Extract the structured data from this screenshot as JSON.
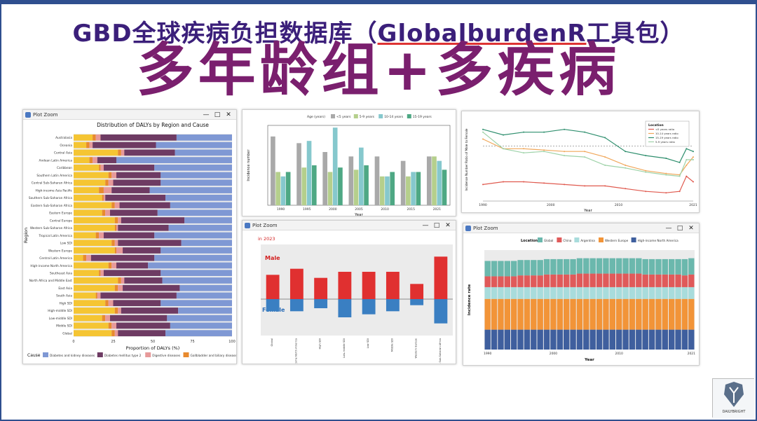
{
  "header": {
    "title_prefix": "GBD全球疾病负担数据库（",
    "title_underlined": "GlobalburdenR",
    "title_suffix": "工具包）",
    "subtitle": "多年龄组+多疾病"
  },
  "windows": {
    "zoom_label": "Plot Zoom",
    "minimize": "—",
    "restore": "□",
    "close": "✕"
  },
  "colors": {
    "frame": "#2f4f8f",
    "title": "#3b1f7a",
    "subtitle": "#7a1f6e"
  },
  "logo": {
    "text": "DAILYBRIGHT"
  },
  "chart_data": [
    {
      "type": "bar",
      "orientation": "horizontal-stacked",
      "title": "Distribution of DALYs by Region and Cause",
      "xlabel": "Proportion of DALYs (%)",
      "ylabel": "Region",
      "xlim": [
        0,
        100
      ],
      "xticks": [
        "0",
        "25",
        "50",
        "75",
        "100"
      ],
      "legend_title": "Cause",
      "legend_position": "bottom",
      "categories": [
        "Australasia",
        "Oceania",
        "Central Asia",
        "Andean Latin America",
        "Caribbean",
        "Southern Latin America",
        "Central Sub-Saharan Africa",
        "High-income Asia Pacific",
        "Southern Sub-Saharan Africa",
        "Eastern Sub-Saharan Africa",
        "Eastern Europe",
        "Central Europe",
        "Western Sub-Saharan Africa",
        "Tropical Latin America",
        "Low SDI",
        "Western Europe",
        "Central Latin America",
        "High-income North America",
        "Southeast Asia",
        "North Africa and Middle East",
        "East Asia",
        "South Asia",
        "High SDI",
        "High-middle SDI",
        "Low-middle SDI",
        "Middle SDI",
        "Global"
      ],
      "series": [
        {
          "name": "Gallbladder and biliary diseases",
          "color": "#f5c533",
          "values": [
            12,
            8,
            28,
            10,
            16,
            22,
            20,
            16,
            18,
            24,
            18,
            26,
            26,
            14,
            24,
            26,
            6,
            22,
            16,
            28,
            26,
            14,
            20,
            26,
            18,
            22,
            24
          ]
        },
        {
          "name": "Gallbladder and biliary diseases",
          "color": "#e88a2e",
          "values": [
            2,
            2,
            2,
            2,
            1,
            2,
            2,
            3,
            1,
            2,
            2,
            2,
            1,
            2,
            2,
            1,
            2,
            2,
            1,
            2,
            2,
            1,
            2,
            2,
            2,
            2,
            2
          ]
        },
        {
          "name": "Digestive diseases",
          "color": "#e79a9a",
          "values": [
            3,
            2,
            2,
            3,
            2,
            3,
            3,
            5,
            1,
            3,
            3,
            2,
            1,
            3,
            2,
            4,
            3,
            3,
            2,
            2,
            3,
            2,
            3,
            2,
            3,
            3,
            2
          ]
        },
        {
          "name": "Diabetes mellitus type 2",
          "color": "#6e3b63",
          "values": [
            48,
            40,
            32,
            12,
            32,
            28,
            30,
            24,
            38,
            32,
            30,
            40,
            32,
            32,
            40,
            24,
            40,
            20,
            36,
            24,
            36,
            48,
            30,
            36,
            36,
            34,
            30
          ]
        },
        {
          "name": "Diabetes and kidney diseases",
          "color": "#7f98d4",
          "values": [
            35,
            48,
            36,
            73,
            49,
            45,
            45,
            52,
            42,
            39,
            47,
            30,
            40,
            49,
            32,
            45,
            49,
            53,
            45,
            44,
            33,
            35,
            45,
            34,
            41,
            39,
            42
          ]
        }
      ]
    },
    {
      "type": "bar",
      "ylabel": "Incidence number",
      "xlabel": "Year",
      "legend_title": "Age (years)",
      "legend_position": "top",
      "categories": [
        "1990",
        "1995",
        "2000",
        "2005",
        "2010",
        "2015",
        "2021"
      ],
      "series": [
        {
          "name": "<5 years",
          "color": "#a9a9a9",
          "values": [
            62,
            56,
            48,
            44,
            44,
            40,
            44
          ]
        },
        {
          "name": "5-9 years",
          "color": "#b5cf8c",
          "values": [
            30,
            34,
            30,
            32,
            26,
            26,
            44
          ]
        },
        {
          "name": "10-14 years",
          "color": "#86c8cd",
          "values": [
            26,
            58,
            70,
            52,
            26,
            30,
            40
          ]
        },
        {
          "name": "15-19 years",
          "color": "#4ea884",
          "values": [
            30,
            36,
            34,
            36,
            30,
            30,
            32
          ]
        }
      ]
    },
    {
      "type": "line",
      "ylabel": "Incidence Number Ratio of Male to Female",
      "xlabel": "Year",
      "legend_title": "Location",
      "legend_position": "top-right",
      "xticks": [
        "1990",
        "2000",
        "2010",
        "2021"
      ],
      "x": [
        1990,
        1993,
        1996,
        1999,
        2002,
        2005,
        2008,
        2011,
        2014,
        2017,
        2019,
        2020,
        2021
      ],
      "series": [
        {
          "name": "<5 years ratio",
          "color": "#e05a4f",
          "values": [
            0.72,
            0.74,
            0.74,
            0.73,
            0.72,
            0.71,
            0.71,
            0.69,
            0.67,
            0.66,
            0.67,
            0.78,
            0.74
          ]
        },
        {
          "name": "10-14 years ratio",
          "color": "#f0a75a",
          "values": [
            1.05,
            0.98,
            0.98,
            0.97,
            0.96,
            0.96,
            0.92,
            0.86,
            0.82,
            0.8,
            0.79,
            0.86,
            0.92
          ]
        },
        {
          "name": "15-19 years ratio",
          "color": "#2f8f6e",
          "values": [
            1.12,
            1.08,
            1.1,
            1.1,
            1.12,
            1.1,
            1.06,
            0.96,
            0.93,
            0.91,
            0.88,
            0.98,
            0.96
          ]
        },
        {
          "name": "5-9 years ratio",
          "color": "#9ed2a8",
          "values": [
            1.1,
            0.98,
            0.95,
            0.96,
            0.93,
            0.92,
            0.86,
            0.84,
            0.81,
            0.79,
            0.78,
            0.9,
            0.9
          ]
        }
      ]
    },
    {
      "type": "bar",
      "title": "in 2023",
      "orientation": "diverging",
      "annotations": [
        "Male",
        "Female"
      ],
      "categories": [
        "Global",
        "High-income North America",
        "High SDI",
        "Low-middle SDI",
        "Low SDI",
        "Middle SDI",
        "Western Europe",
        "Western Sub-Saharan Africa"
      ],
      "series": [
        {
          "name": "Male",
          "color": "#e03030",
          "values": [
            40,
            50,
            35,
            45,
            45,
            45,
            25,
            70
          ]
        },
        {
          "name": "Female",
          "color": "#3a7fc2",
          "values": [
            -20,
            -20,
            -15,
            -30,
            -25,
            -20,
            -10,
            -40
          ]
        }
      ]
    },
    {
      "type": "bar",
      "orientation": "vertical-stacked",
      "ylabel": "Incidence rate",
      "xlabel": "Year",
      "legend_title": "Location",
      "legend_position": "top",
      "xticks": [
        "1990",
        "2000",
        "2010",
        "2021"
      ],
      "x": [
        1990,
        1991,
        1992,
        1993,
        1994,
        1995,
        1996,
        1997,
        1998,
        1999,
        2000,
        2001,
        2002,
        2003,
        2004,
        2005,
        2006,
        2007,
        2008,
        2009,
        2010,
        2011,
        2012,
        2013,
        2014,
        2015,
        2016,
        2017,
        2018,
        2019,
        2020,
        2021
      ],
      "series": [
        {
          "name": "High-income North America",
          "color": "#3f5f9e",
          "values": [
            22,
            22,
            22,
            22,
            22,
            22,
            22,
            22,
            22,
            22,
            22,
            22,
            22,
            22,
            22,
            22,
            22,
            22,
            22,
            22,
            22,
            22,
            22,
            22,
            22,
            22,
            22,
            22,
            22,
            22,
            22,
            22
          ]
        },
        {
          "name": "Western Europe",
          "color": "#f29438",
          "values": [
            34,
            34,
            34,
            34,
            34,
            34,
            34,
            34,
            34,
            34,
            34,
            34,
            34,
            34,
            34,
            34,
            34,
            34,
            34,
            34,
            34,
            34,
            34,
            34,
            34,
            34,
            34,
            34,
            34,
            34,
            34,
            34
          ]
        },
        {
          "name": "Argentina",
          "color": "#a8dcdc",
          "values": [
            13,
            13,
            13,
            13,
            13,
            13,
            13,
            13,
            13,
            13,
            13,
            13,
            13,
            13,
            13,
            13,
            13,
            13,
            13,
            13,
            13,
            13,
            13,
            13,
            13,
            13,
            13,
            13,
            13,
            13,
            13,
            13
          ]
        },
        {
          "name": "China",
          "color": "#e05a5a",
          "values": [
            12,
            12,
            12,
            12,
            12,
            13,
            13,
            13,
            13,
            14,
            14,
            14,
            14,
            14,
            15,
            15,
            15,
            15,
            15,
            15,
            15,
            15,
            15,
            15,
            14,
            14,
            14,
            14,
            14,
            14,
            13,
            14
          ]
        },
        {
          "name": "Global",
          "color": "#6bb8ad",
          "values": [
            17,
            17,
            17,
            17,
            17,
            17,
            17,
            17,
            17,
            17,
            17,
            17,
            17,
            17,
            17,
            17,
            17,
            17,
            17,
            17,
            17,
            17,
            17,
            17,
            17,
            17,
            17,
            17,
            17,
            17,
            18,
            18
          ]
        }
      ]
    }
  ]
}
